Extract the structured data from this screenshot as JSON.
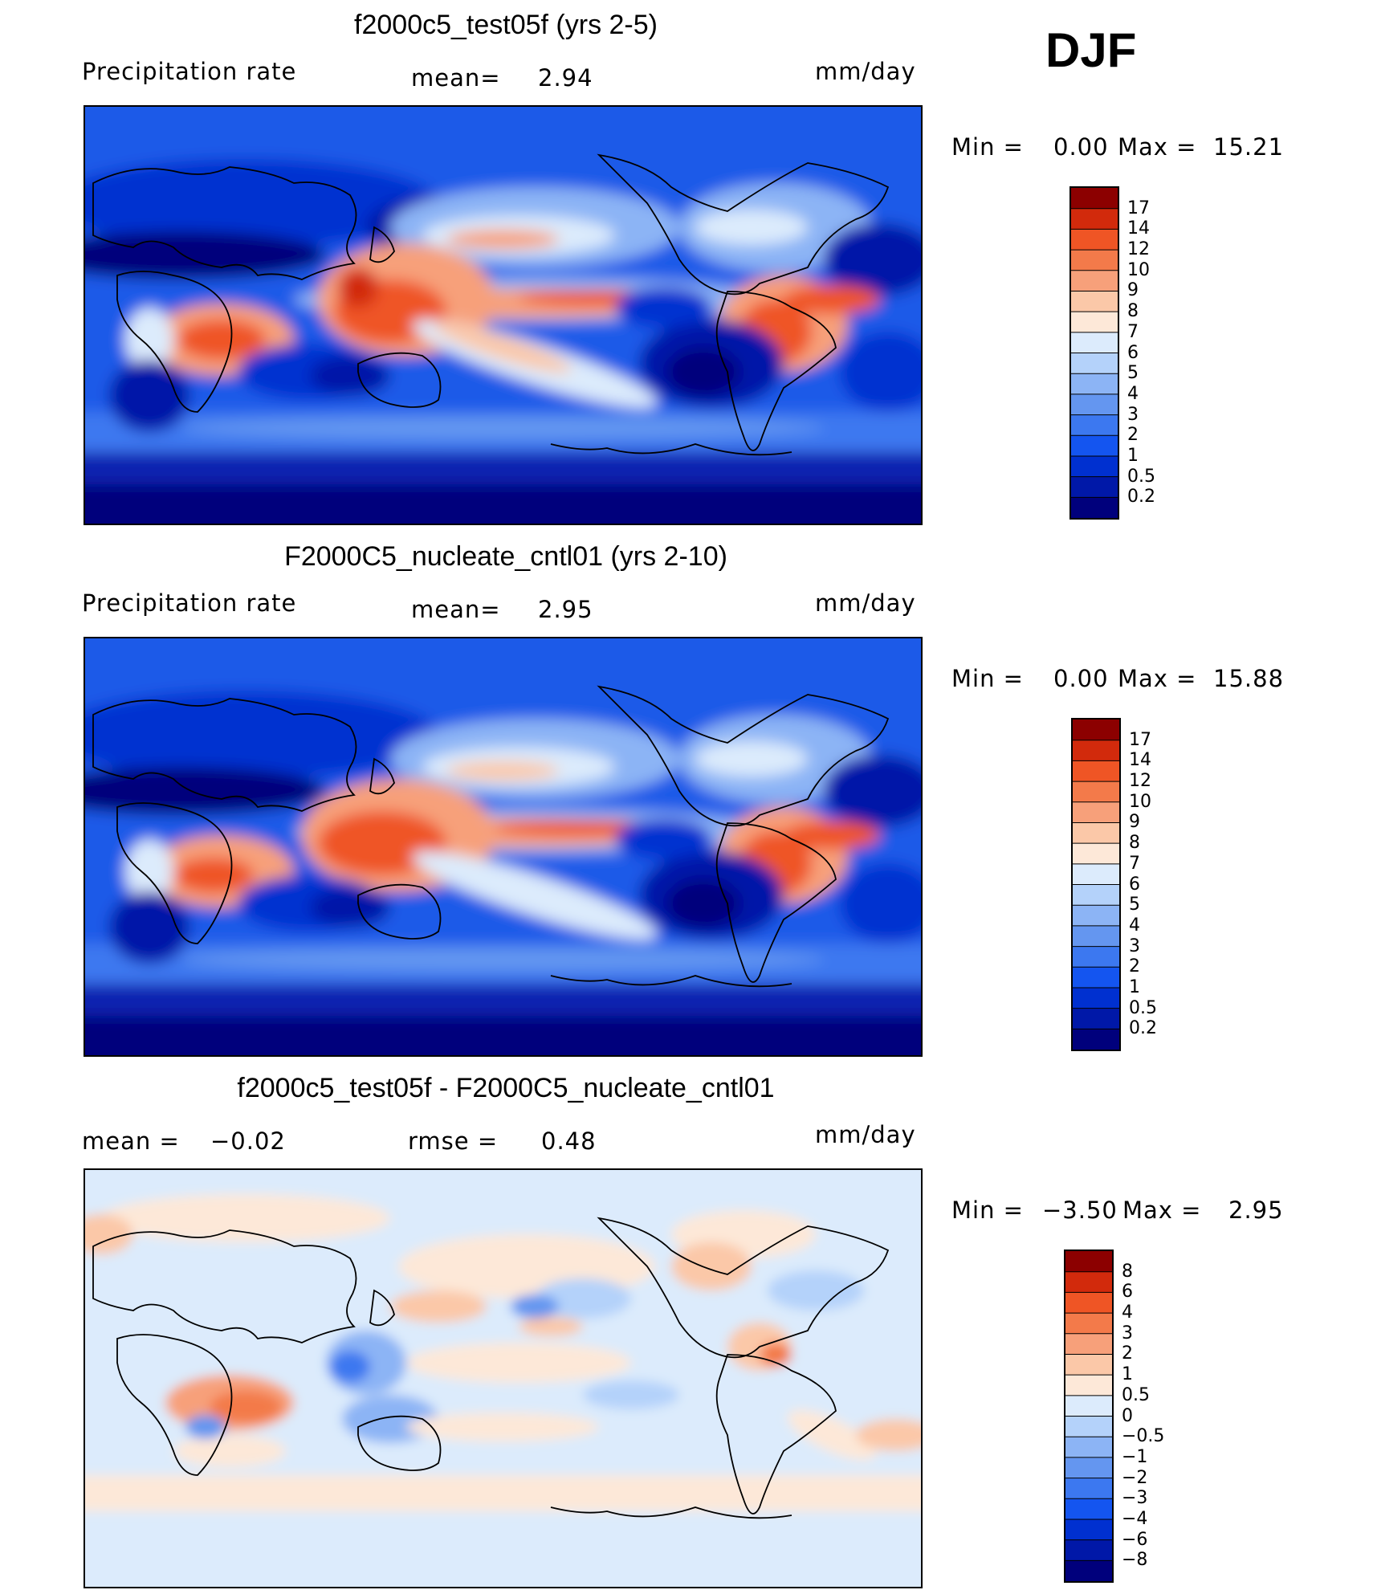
{
  "season": "DJF",
  "panels": [
    {
      "id": "test",
      "title": "f2000c5_test05f (yrs 2-5)",
      "left_label": "Precipitation  rate",
      "center_label": "mean=",
      "center_value": "2.94",
      "units": "mm/day",
      "minmax": {
        "min_label": "Min  =",
        "min": "0.00",
        "max_label": "Max  =",
        "max": "15.21"
      },
      "colorbar": {
        "ticks": [
          "0.2",
          "0.5",
          "1",
          "2",
          "3",
          "4",
          "5",
          "6",
          "7",
          "8",
          "9",
          "10",
          "12",
          "14",
          "17"
        ],
        "colors": [
          "#00007c",
          "#0018a8",
          "#0030d0",
          "#1455f0",
          "#3c78f0",
          "#6496f0",
          "#8cb4f5",
          "#b4d2fa",
          "#dcebfc",
          "#fde8d8",
          "#fbc8a8",
          "#f7a07a",
          "#f37a4a",
          "#ef5525",
          "#d22a0c",
          "#8c0000"
        ]
      },
      "chart_data": {
        "type": "heatmap",
        "variable": "Precipitation  rate",
        "units": "mm/day",
        "mean": 2.94,
        "min": 0.0,
        "max": 15.21,
        "levels": [
          0.2,
          0.5,
          1,
          2,
          3,
          4,
          5,
          6,
          7,
          8,
          9,
          10,
          12,
          14,
          17
        ]
      }
    },
    {
      "id": "control",
      "title": "F2000C5_nucleate_cntl01 (yrs 2-10)",
      "left_label": "Precipitation  rate",
      "center_label": "mean=",
      "center_value": "2.95",
      "units": "mm/day",
      "minmax": {
        "min_label": "Min  =",
        "min": "0.00",
        "max_label": "Max  =",
        "max": "15.88"
      },
      "colorbar": {
        "ticks": [
          "0.2",
          "0.5",
          "1",
          "2",
          "3",
          "4",
          "5",
          "6",
          "7",
          "8",
          "9",
          "10",
          "12",
          "14",
          "17"
        ],
        "colors": [
          "#00007c",
          "#0018a8",
          "#0030d0",
          "#1455f0",
          "#3c78f0",
          "#6496f0",
          "#8cb4f5",
          "#b4d2fa",
          "#dcebfc",
          "#fde8d8",
          "#fbc8a8",
          "#f7a07a",
          "#f37a4a",
          "#ef5525",
          "#d22a0c",
          "#8c0000"
        ]
      },
      "chart_data": {
        "type": "heatmap",
        "variable": "Precipitation  rate",
        "units": "mm/day",
        "mean": 2.95,
        "min": 0.0,
        "max": 15.88,
        "levels": [
          0.2,
          0.5,
          1,
          2,
          3,
          4,
          5,
          6,
          7,
          8,
          9,
          10,
          12,
          14,
          17
        ]
      }
    },
    {
      "id": "diff",
      "title": "f2000c5_test05f - F2000C5_nucleate_cntl01",
      "left_label": "mean  =",
      "left_value": "−0.02",
      "center_label": "rmse  =",
      "center_value": "0.48",
      "units": "mm/day",
      "minmax": {
        "min_label": "Min  =",
        "min": "−3.50",
        "max_label": "Max  =",
        "max": "2.95"
      },
      "colorbar": {
        "ticks": [
          "−8",
          "−6",
          "−4",
          "−3",
          "−2",
          "−1",
          "−0.5",
          "0",
          "0.5",
          "1",
          "2",
          "3",
          "4",
          "6",
          "8"
        ],
        "colors": [
          "#00007c",
          "#0018a8",
          "#0030d0",
          "#1455f0",
          "#3c78f0",
          "#6496f0",
          "#8cb4f5",
          "#b4d2fa",
          "#dcebfc",
          "#fde8d8",
          "#fbc8a8",
          "#f7a07a",
          "#f37a4a",
          "#ef5525",
          "#d22a0c",
          "#8c0000"
        ]
      },
      "chart_data": {
        "type": "heatmap",
        "variable": "difference",
        "units": "mm/day",
        "mean": -0.02,
        "rmse": 0.48,
        "min": -3.5,
        "max": 2.95,
        "levels": [
          -8,
          -6,
          -4,
          -3,
          -2,
          -1,
          -0.5,
          0,
          0.5,
          1,
          2,
          3,
          4,
          6,
          8
        ]
      }
    }
  ]
}
